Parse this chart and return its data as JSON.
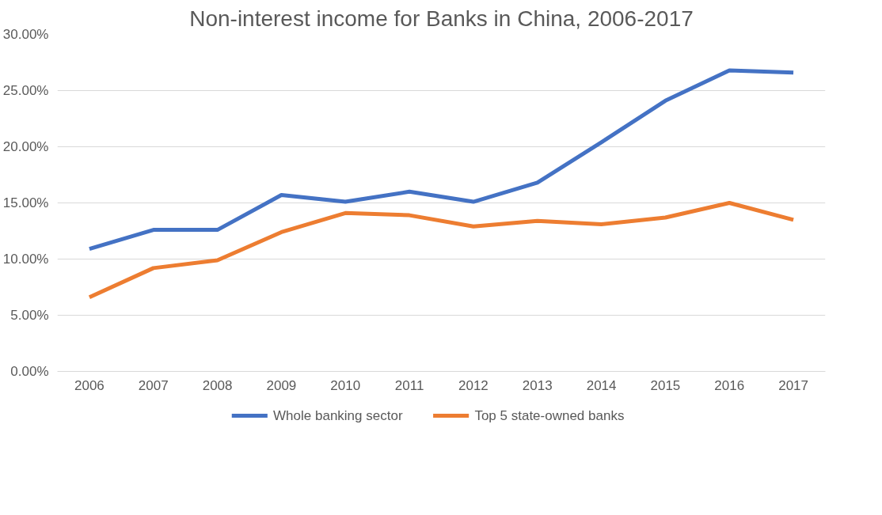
{
  "chart_data": {
    "type": "line",
    "title": "Non-interest income for Banks in China, 2006-2017",
    "categories": [
      "2006",
      "2007",
      "2008",
      "2009",
      "2010",
      "2011",
      "2012",
      "2013",
      "2014",
      "2015",
      "2016",
      "2017"
    ],
    "series": [
      {
        "name": "Whole banking sector",
        "color": "#4472c4",
        "values": [
          10.9,
          12.6,
          12.6,
          15.7,
          15.1,
          16.0,
          15.1,
          16.8,
          20.4,
          24.1,
          26.8,
          26.6
        ]
      },
      {
        "name": "Top 5 state-owned banks",
        "color": "#ed7d31",
        "values": [
          6.6,
          9.2,
          9.9,
          12.4,
          14.1,
          13.9,
          12.9,
          13.4,
          13.1,
          13.7,
          15.0,
          13.5
        ]
      }
    ],
    "ylim": [
      0,
      30
    ],
    "yticks": [
      {
        "value": 0,
        "label": "0.00%"
      },
      {
        "value": 5,
        "label": "5.00%"
      },
      {
        "value": 10,
        "label": "10.00%"
      },
      {
        "value": 15,
        "label": "15.00%"
      },
      {
        "value": 20,
        "label": "20.00%"
      },
      {
        "value": 25,
        "label": "25.00%"
      },
      {
        "value": 30,
        "label": "30.00%"
      }
    ],
    "grid": "y",
    "legend": "bottom",
    "marker": "none",
    "line_style": "solid"
  }
}
